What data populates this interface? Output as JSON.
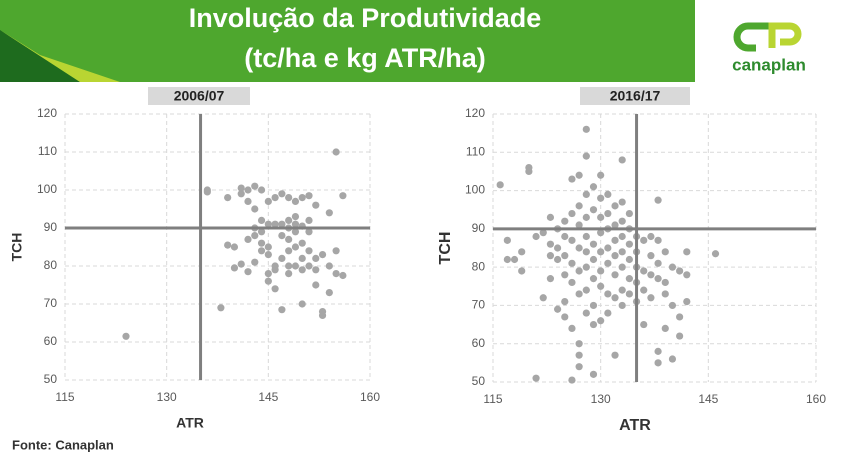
{
  "header": {
    "title": [
      "Involução da Produtividade",
      "(tc/ha e kg ATR/ha)"
    ]
  },
  "logo": "canaplan",
  "source": "Fonte: Canaplan",
  "chart_data": [
    {
      "type": "scatter",
      "title": "2006/07",
      "x_label": "ATR",
      "y_label": "TCH",
      "xlim": [
        115,
        160
      ],
      "ylim": [
        50,
        120
      ],
      "xticks": [
        115,
        130,
        145,
        160
      ],
      "yticks": [
        50,
        60,
        70,
        80,
        90,
        100,
        110,
        120
      ],
      "grid": true,
      "color": "#a6a6a6",
      "vline": 135,
      "hline": 90,
      "x": [
        124,
        138,
        136,
        136,
        139,
        141,
        141,
        142,
        142,
        143,
        144,
        143,
        144,
        145,
        145,
        146,
        147,
        148,
        149,
        150,
        151,
        152,
        154,
        155,
        156,
        139,
        140,
        140,
        141,
        142,
        142,
        143,
        143,
        144,
        144,
        145,
        145,
        146,
        145,
        145,
        146,
        146,
        147,
        147,
        147,
        148,
        148,
        148,
        149,
        149,
        149,
        149,
        148,
        147,
        150,
        150,
        150,
        151,
        151,
        151,
        152,
        152,
        152,
        153,
        153,
        154,
        154,
        155,
        155,
        156,
        153,
        150,
        149,
        148,
        146,
        144,
        143,
        151,
        150,
        148
      ],
      "values": [
        61.5,
        69,
        100,
        99.5,
        98,
        100.5,
        99,
        97,
        100,
        101,
        100,
        95,
        92,
        91,
        97,
        98,
        99,
        98,
        97,
        98,
        98.5,
        96,
        94,
        110,
        98.5,
        85.5,
        85,
        79.5,
        80.5,
        78.5,
        87,
        88,
        90,
        89,
        86,
        85,
        83,
        80,
        78,
        76,
        74,
        79,
        82,
        88,
        91,
        90,
        87,
        92,
        93,
        89,
        85,
        80,
        78,
        68.5,
        70,
        82,
        86,
        89,
        92,
        84,
        79,
        75,
        82,
        67,
        83,
        80,
        73,
        84,
        78,
        77.5,
        68,
        90.5,
        91,
        84,
        91,
        84,
        81,
        80,
        79,
        80
      ]
    },
    {
      "type": "scatter",
      "title": "2016/17",
      "x_label": "ATR",
      "y_label": "TCH",
      "xlim": [
        115,
        160
      ],
      "ylim": [
        50,
        120
      ],
      "xticks": [
        115,
        130,
        145,
        160
      ],
      "yticks": [
        50,
        60,
        70,
        80,
        90,
        100,
        110,
        120
      ],
      "grid": true,
      "color": "#a6a6a6",
      "vline": 135,
      "hline": 90,
      "x": [
        116,
        117,
        117,
        118,
        119,
        119,
        120,
        120,
        121,
        122,
        122,
        121,
        123,
        123,
        123,
        123,
        124,
        124,
        124,
        124,
        125,
        125,
        125,
        125,
        125,
        125,
        126,
        126,
        126,
        126,
        126,
        126,
        126,
        127,
        127,
        127,
        127,
        127,
        127,
        127,
        127,
        127,
        128,
        128,
        128,
        128,
        128,
        128,
        128,
        128,
        128,
        129,
        129,
        129,
        129,
        129,
        129,
        129,
        129,
        130,
        130,
        130,
        130,
        130,
        130,
        130,
        130,
        131,
        131,
        131,
        131,
        131,
        131,
        131,
        132,
        132,
        132,
        132,
        132,
        132,
        132,
        133,
        133,
        133,
        133,
        133,
        133,
        133,
        133,
        134,
        134,
        134,
        134,
        134,
        134,
        135,
        135,
        135,
        135,
        135,
        136,
        136,
        136,
        136,
        137,
        137,
        137,
        137,
        138,
        138,
        138,
        138,
        138,
        138,
        139,
        139,
        139,
        139,
        140,
        140,
        140,
        141,
        141,
        141,
        142,
        142,
        142,
        146
      ],
      "values": [
        101.5,
        87,
        82,
        82,
        79,
        84,
        106,
        105,
        88,
        89,
        72,
        51,
        93,
        86,
        83,
        77,
        90,
        85,
        82,
        69,
        92,
        88,
        83,
        78,
        71,
        67,
        103,
        94,
        87,
        81,
        76,
        64,
        50.5,
        104,
        96,
        91,
        85,
        79,
        73,
        60,
        57,
        54,
        116,
        109,
        99,
        93,
        88,
        84,
        80,
        74,
        68,
        101,
        95,
        86,
        82,
        77,
        70,
        65,
        52,
        104,
        98,
        93,
        89,
        84,
        79,
        75,
        66,
        99,
        94,
        90,
        85,
        81,
        73,
        68,
        96,
        91,
        87,
        83,
        78,
        72,
        57,
        108,
        97,
        92,
        88,
        84,
        80,
        74,
        70,
        94,
        90,
        86,
        82,
        77,
        73,
        88,
        84,
        80,
        76,
        71,
        87,
        79,
        74,
        65,
        88,
        83,
        78,
        72,
        97.5,
        87,
        81,
        77,
        58,
        55,
        84,
        76,
        73,
        64,
        80,
        70,
        56,
        79,
        67,
        62,
        84,
        78,
        71,
        83.5
      ]
    }
  ]
}
